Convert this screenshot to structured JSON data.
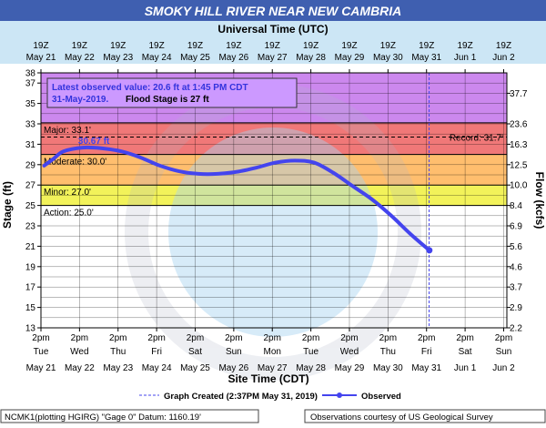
{
  "chart_data": {
    "type": "line",
    "title": "SMOKY HILL RIVER NEAR NEW CAMBRIA",
    "top_axis_label": "Universal Time (UTC)",
    "xlabel": "Site Time (CDT)",
    "ylabel": "Stage (ft)",
    "ylabel_right": "Flow (kcfs)",
    "ylim": [
      13,
      38
    ],
    "xlim": [
      "2019-05-21 12:00",
      "2019-06-02 14:00"
    ],
    "y_ticks_left": [
      "38",
      "37",
      "35",
      "33",
      "31",
      "29",
      "27",
      "25",
      "23",
      "21",
      "19",
      "17",
      "15",
      "13"
    ],
    "y_ticks_right": [
      {
        "stage": 36,
        "label": "37.7"
      },
      {
        "stage": 33,
        "label": "23.6"
      },
      {
        "stage": 31,
        "label": "16.3"
      },
      {
        "stage": 29,
        "label": "12.5"
      },
      {
        "stage": 27,
        "label": "10.0"
      },
      {
        "stage": 25,
        "label": "8.4"
      },
      {
        "stage": 23,
        "label": "6.9"
      },
      {
        "stage": 21,
        "label": "5.6"
      },
      {
        "stage": 19,
        "label": "4.6"
      },
      {
        "stage": 17,
        "label": "3.7"
      },
      {
        "stage": 15,
        "label": "2.9"
      },
      {
        "stage": 13,
        "label": "2.2"
      }
    ],
    "x_ticks_top": [
      {
        "time": "19Z",
        "date": "May 21"
      },
      {
        "time": "19Z",
        "date": "May 22"
      },
      {
        "time": "19Z",
        "date": "May 23"
      },
      {
        "time": "19Z",
        "date": "May 24"
      },
      {
        "time": "19Z",
        "date": "May 25"
      },
      {
        "time": "19Z",
        "date": "May 26"
      },
      {
        "time": "19Z",
        "date": "May 27"
      },
      {
        "time": "19Z",
        "date": "May 28"
      },
      {
        "time": "19Z",
        "date": "May 29"
      },
      {
        "time": "19Z",
        "date": "May 30"
      },
      {
        "time": "19Z",
        "date": "May 31"
      },
      {
        "time": "19Z",
        "date": "Jun 1"
      },
      {
        "time": "19Z",
        "date": "Jun 2"
      }
    ],
    "x_ticks_bottom": [
      {
        "time": "2pm",
        "day": "Tue",
        "date": "May 21"
      },
      {
        "time": "2pm",
        "day": "Wed",
        "date": "May 22"
      },
      {
        "time": "2pm",
        "day": "Thu",
        "date": "May 23"
      },
      {
        "time": "2pm",
        "day": "Fri",
        "date": "May 24"
      },
      {
        "time": "2pm",
        "day": "Sat",
        "date": "May 25"
      },
      {
        "time": "2pm",
        "day": "Sun",
        "date": "May 26"
      },
      {
        "time": "2pm",
        "day": "Mon",
        "date": "May 27"
      },
      {
        "time": "2pm",
        "day": "Tue",
        "date": "May 28"
      },
      {
        "time": "2pm",
        "day": "Wed",
        "date": "May 29"
      },
      {
        "time": "2pm",
        "day": "Thu",
        "date": "May 30"
      },
      {
        "time": "2pm",
        "day": "Fri",
        "date": "May 31"
      },
      {
        "time": "2pm",
        "day": "Sat",
        "date": "Jun 1"
      },
      {
        "time": "2pm",
        "day": "Sun",
        "date": "Jun 2"
      }
    ],
    "flood_bands": [
      {
        "name": "Major",
        "from": 33.1,
        "to": 38,
        "color": "#cc88ee"
      },
      {
        "name": "Moderate",
        "from": 30.0,
        "to": 33.1,
        "color": "#f07878"
      },
      {
        "name": "Minor",
        "from": 27.0,
        "to": 30.0,
        "color": "#ffbe6e"
      },
      {
        "name": "Action",
        "from": 25.0,
        "to": 27.0,
        "color": "#f2f25a"
      }
    ],
    "stage_lines": [
      {
        "name": "major",
        "value": 33.1,
        "label": "Major:  33.1'"
      },
      {
        "name": "moderate",
        "value": 30.0,
        "label": "Moderate:  30.0'"
      },
      {
        "name": "minor",
        "value": 27.0,
        "label": "Minor:  27.0'"
      },
      {
        "name": "action",
        "value": 25.0,
        "label": "Action:  25.0'"
      }
    ],
    "record": {
      "value": 31.7,
      "label": "Record:  31.7'"
    },
    "peak_label": {
      "value": 30.67,
      "time": "2019-05-22 14:00",
      "label": "30.67 ft"
    },
    "graph_created_time": "2019-05-31 13:37",
    "series": [
      {
        "name": "Observed",
        "color": "#4444ee",
        "points": [
          [
            "2019-05-21 14:00",
            28.9
          ],
          [
            "2019-05-21 20:00",
            29.6
          ],
          [
            "2019-05-22 02:00",
            30.3
          ],
          [
            "2019-05-22 14:00",
            30.67
          ],
          [
            "2019-05-23 02:00",
            30.6
          ],
          [
            "2019-05-23 14:00",
            30.3
          ],
          [
            "2019-05-24 02:00",
            29.7
          ],
          [
            "2019-05-24 14:00",
            28.9
          ],
          [
            "2019-05-25 02:00",
            28.35
          ],
          [
            "2019-05-25 14:00",
            28.1
          ],
          [
            "2019-05-26 02:00",
            28.1
          ],
          [
            "2019-05-26 14:00",
            28.3
          ],
          [
            "2019-05-27 02:00",
            28.7
          ],
          [
            "2019-05-27 14:00",
            29.2
          ],
          [
            "2019-05-28 02:00",
            29.4
          ],
          [
            "2019-05-28 14:00",
            29.2
          ],
          [
            "2019-05-29 02:00",
            28.2
          ],
          [
            "2019-05-29 14:00",
            26.9
          ],
          [
            "2019-05-30 02:00",
            25.6
          ],
          [
            "2019-05-30 14:00",
            24.0
          ],
          [
            "2019-05-31 02:00",
            22.2
          ],
          [
            "2019-05-31 13:45",
            20.6
          ]
        ]
      }
    ]
  },
  "info_box": {
    "line1": "Latest observed value: 20.6 ft at 1:45 PM CDT",
    "line2_date": "31-May-2019.",
    "line2_flood": "Flood Stage is 27 ft"
  },
  "legend": {
    "created": "Graph Created (2:37PM May 31, 2019)",
    "observed": "Observed"
  },
  "footer": {
    "left": "NCMK1(plotting HGIRG) \"Gage 0\" Datum: 1160.19'",
    "right": "Observations courtesy of US Geological Survey"
  },
  "colors": {
    "title_bar": "#3f5fb0",
    "header_band": "#cce6f5",
    "plot_background": "#ffffff",
    "observed_line": "#4444ee",
    "info_box": "#cc99ff"
  }
}
